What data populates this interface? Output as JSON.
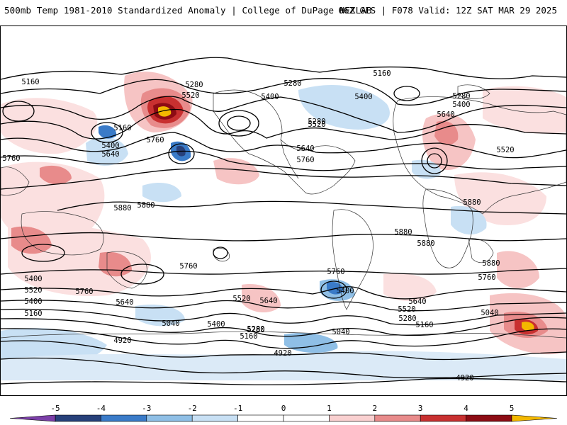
{
  "header": {
    "title_left": "500mb Temp 1981-2010 Standardized Anomaly | College of DuPage NEXLAB",
    "title_right": "06Z GFS | F078 Valid: 12Z SAT MAR 29 2025"
  },
  "colorbar": {
    "ticks": [
      "-5",
      "-4",
      "-3",
      "-2",
      "-1",
      "0",
      "1",
      "2",
      "3",
      "4",
      "5"
    ],
    "colors": [
      "#7b3fa8",
      "#27407a",
      "#3a7bc8",
      "#8fbfe6",
      "#c8e0f4",
      "#ffffff",
      "#ffffff",
      "#f9d0d0",
      "#e88b8b",
      "#c83030",
      "#8c0c14",
      "#f3b800"
    ]
  },
  "contour_labels": [
    "5160",
    "5280",
    "5520",
    "5400",
    "5280",
    "5160",
    "5400",
    "5280",
    "5400",
    "5160",
    "5640",
    "5760",
    "5400",
    "5640",
    "5520",
    "5280",
    "5520",
    "5640",
    "5760",
    "5760",
    "5880",
    "5880",
    "5880",
    "5880",
    "5880",
    "5880",
    "5760",
    "5760",
    "5760",
    "5400",
    "5520",
    "5400",
    "5760",
    "5640",
    "5520",
    "5640",
    "5280",
    "5400",
    "5640",
    "5520",
    "5160",
    "5280",
    "5040",
    "5160",
    "5040",
    "5040",
    "4920",
    "4920",
    "4920",
    "5280",
    "5160",
    "5400"
  ]
}
